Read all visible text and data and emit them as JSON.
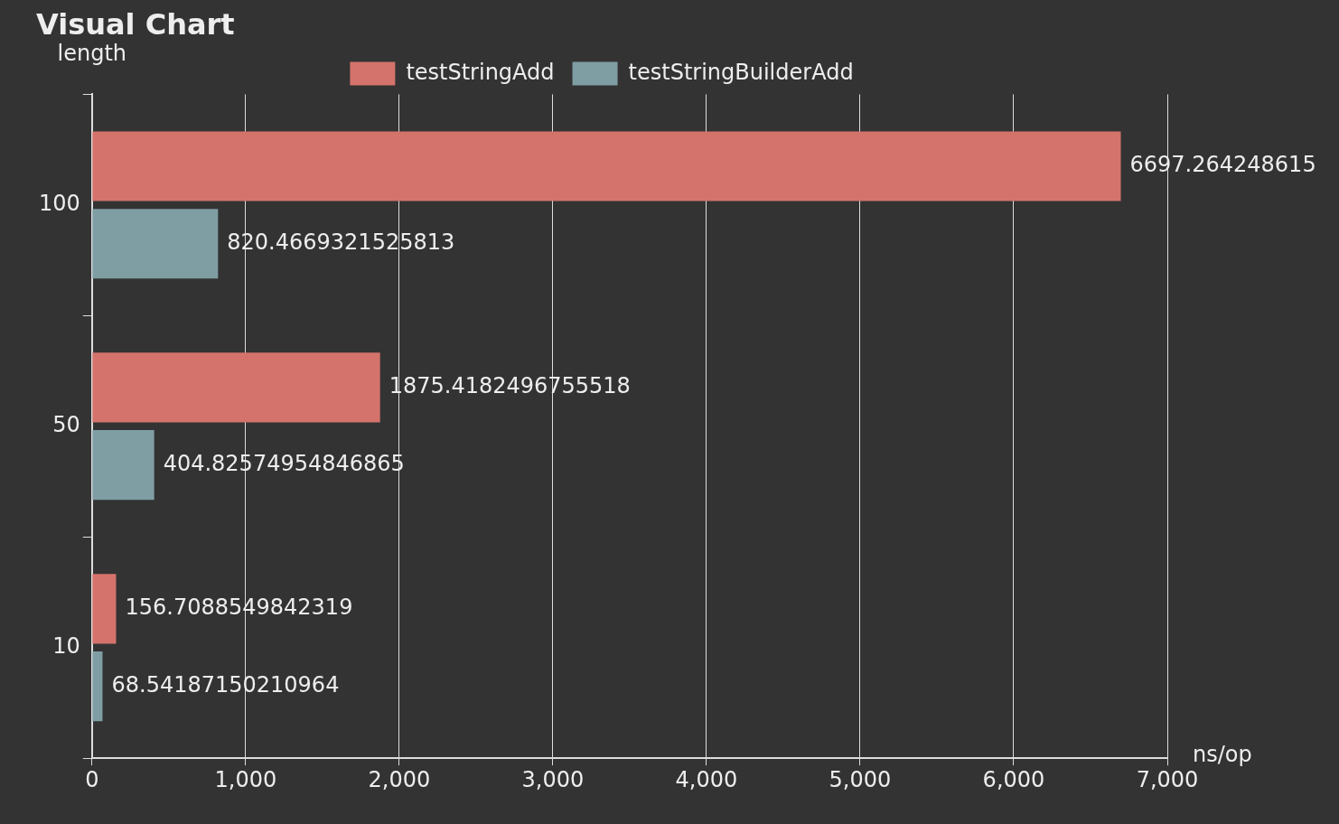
{
  "chart_data": {
    "type": "bar",
    "orientation": "horizontal",
    "title": "Visual Chart",
    "xlabel": "ns/op",
    "ylabel": "length",
    "categories": [
      "100",
      "50",
      "10"
    ],
    "series": [
      {
        "name": "testStringAdd",
        "color": "#d4736b",
        "values": [
          6697.264248615,
          1875.4182496755518,
          156.7088549842319
        ]
      },
      {
        "name": "testStringBuilderAdd",
        "color": "#7f9ea4",
        "values": [
          820.4669321525813,
          404.82574954846865,
          68.54187150210964
        ]
      }
    ],
    "xlim": [
      0,
      7000
    ],
    "xticks": [
      0,
      {
        "value": 1000,
        "label": "1,000"
      },
      {
        "value": 2000,
        "label": "2,000"
      },
      {
        "value": 3000,
        "label": "3,000"
      },
      {
        "value": 4000,
        "label": "4,000"
      },
      {
        "value": 5000,
        "label": "5,000"
      },
      {
        "value": 6000,
        "label": "6,000"
      },
      {
        "value": 7000,
        "label": "7,000"
      }
    ],
    "grid": "x",
    "legend": "top",
    "data_labels": true
  }
}
